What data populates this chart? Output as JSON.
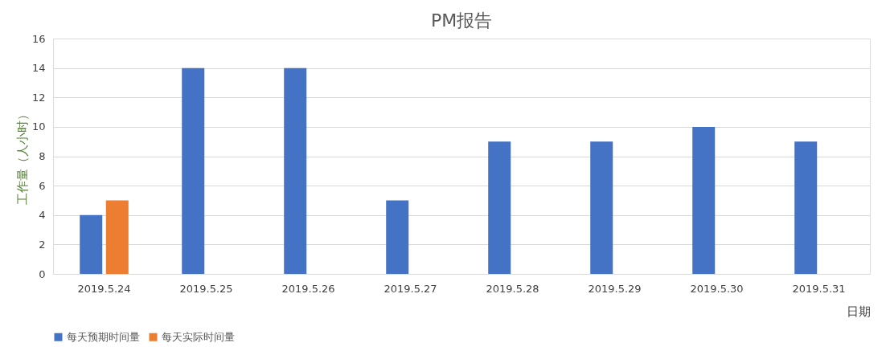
{
  "chart_data": {
    "type": "bar",
    "title": "PM报告",
    "xlabel": "日期",
    "ylabel": "工作量（人小时）",
    "categories": [
      "2019.5.24",
      "2019.5.25",
      "2019.5.26",
      "2019.5.27",
      "2019.5.28",
      "2019.5.29",
      "2019.5.30",
      "2019.5.31"
    ],
    "series": [
      {
        "name": "每天预期时间量",
        "color": "#4472c4",
        "values": [
          4,
          14,
          14,
          5,
          9,
          9,
          10,
          9
        ]
      },
      {
        "name": "每天实际时间量",
        "color": "#ed7d31",
        "values": [
          5,
          null,
          null,
          null,
          null,
          null,
          null,
          null
        ]
      }
    ],
    "ylim": [
      0,
      16
    ],
    "yticks": [
      0,
      2,
      4,
      6,
      8,
      10,
      12,
      14,
      16
    ],
    "grid": "y",
    "legend": "bottom"
  }
}
